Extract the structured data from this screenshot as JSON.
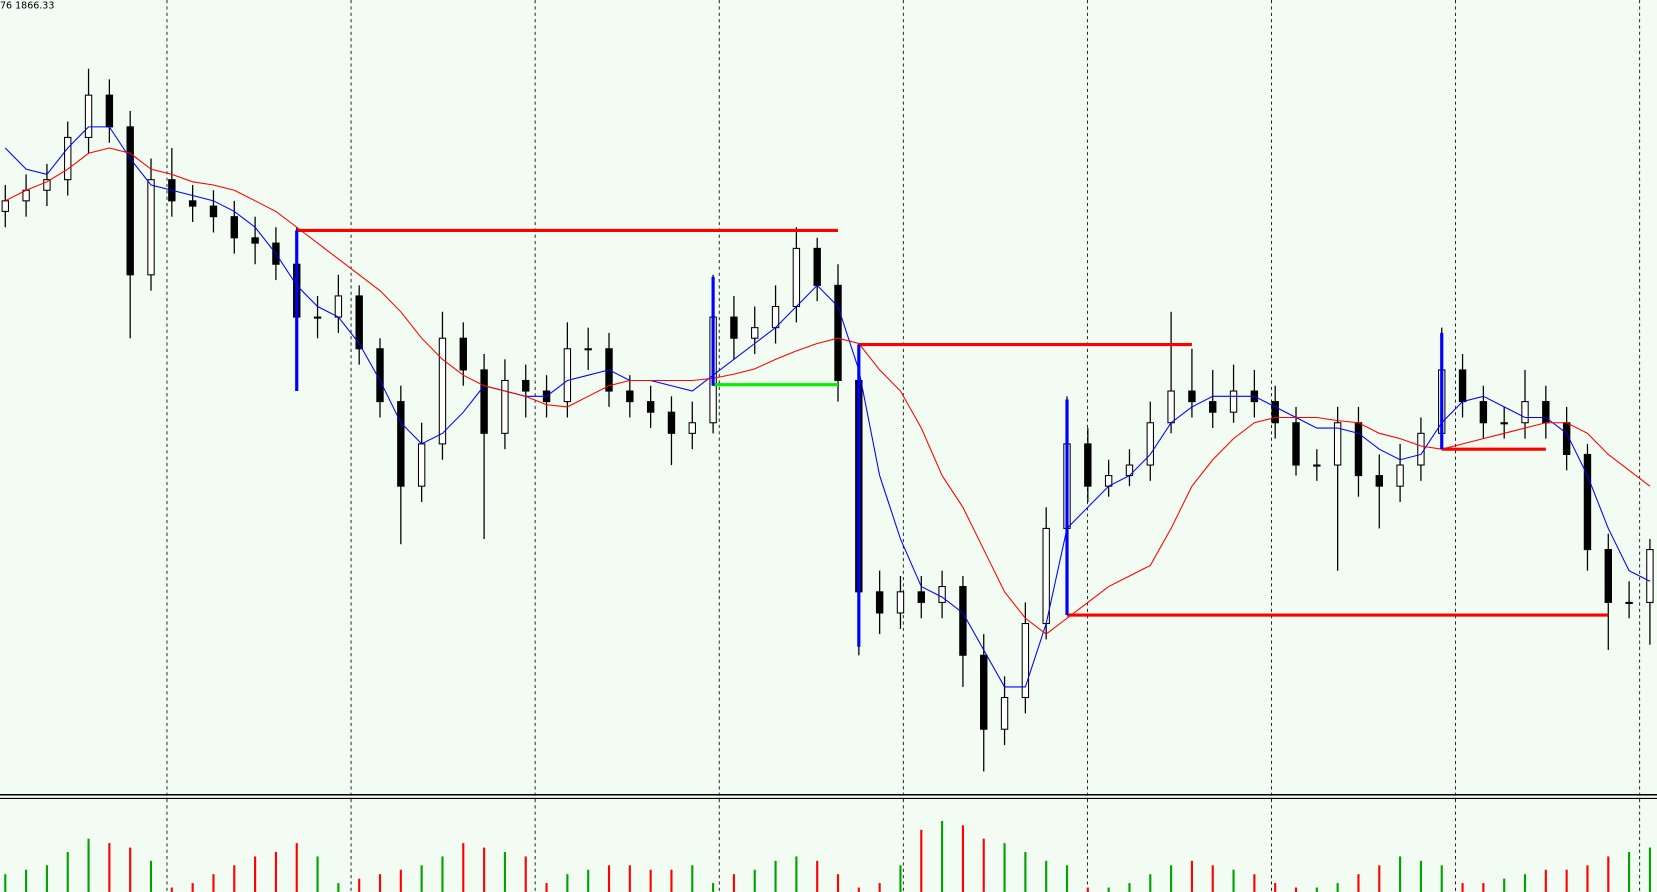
{
  "chart_data": {
    "type": "candlestick",
    "title": "76 1866.33",
    "ylim": [
      0,
      750
    ],
    "open": [
      550,
      560,
      570,
      580,
      620,
      660,
      630,
      490,
      580,
      560,
      555,
      545,
      525,
      520,
      500,
      450,
      450,
      470,
      420,
      370,
      290,
      330,
      430,
      400,
      340,
      390,
      380,
      370,
      420,
      420,
      380,
      370,
      360,
      340,
      350,
      450,
      430,
      440,
      460,
      515,
      480,
      390,
      190,
      170,
      190,
      180,
      195,
      130,
      60,
      90,
      160,
      250,
      330,
      290,
      300,
      310,
      350,
      380,
      370,
      360,
      380,
      370,
      350,
      310,
      310,
      350,
      300,
      290,
      310,
      340,
      400,
      370,
      350,
      350,
      370,
      350,
      320,
      230,
      180,
      180
    ],
    "high": [
      575,
      585,
      595,
      635,
      685,
      675,
      645,
      600,
      610,
      575,
      570,
      560,
      545,
      535,
      535,
      470,
      490,
      480,
      430,
      385,
      350,
      455,
      445,
      415,
      410,
      405,
      395,
      445,
      440,
      435,
      395,
      385,
      375,
      370,
      490,
      470,
      460,
      480,
      535,
      525,
      500,
      425,
      210,
      205,
      205,
      210,
      205,
      150,
      110,
      180,
      270,
      375,
      345,
      315,
      325,
      370,
      455,
      420,
      400,
      405,
      400,
      385,
      365,
      325,
      365,
      365,
      320,
      330,
      355,
      440,
      415,
      385,
      365,
      400,
      385,
      365,
      330,
      245,
      200,
      240
    ],
    "low": [
      535,
      545,
      555,
      565,
      605,
      615,
      430,
      475,
      545,
      540,
      530,
      510,
      500,
      485,
      380,
      430,
      435,
      405,
      355,
      235,
      275,
      315,
      385,
      240,
      325,
      355,
      355,
      355,
      400,
      365,
      355,
      345,
      310,
      325,
      340,
      410,
      415,
      425,
      445,
      465,
      370,
      130,
      150,
      155,
      165,
      165,
      100,
      20,
      45,
      75,
      145,
      235,
      275,
      280,
      290,
      295,
      340,
      355,
      345,
      350,
      355,
      335,
      300,
      295,
      210,
      280,
      250,
      275,
      295,
      330,
      355,
      335,
      335,
      335,
      335,
      305,
      210,
      135,
      165,
      140
    ],
    "close": [
      560,
      570,
      580,
      620,
      660,
      630,
      490,
      580,
      560,
      555,
      545,
      525,
      520,
      500,
      450,
      450,
      470,
      420,
      370,
      290,
      330,
      430,
      400,
      340,
      390,
      380,
      370,
      420,
      420,
      380,
      370,
      360,
      340,
      350,
      450,
      430,
      440,
      460,
      515,
      480,
      390,
      190,
      170,
      190,
      180,
      195,
      130,
      60,
      90,
      160,
      250,
      330,
      290,
      300,
      310,
      350,
      380,
      370,
      360,
      380,
      370,
      350,
      310,
      310,
      350,
      300,
      290,
      310,
      340,
      400,
      370,
      350,
      350,
      370,
      350,
      320,
      230,
      180,
      180,
      230
    ],
    "series": [
      {
        "color": "#0000ff",
        "values": [
          610,
          590,
          585,
          610,
          630,
          630,
          600,
          575,
          570,
          565,
          560,
          550,
          535,
          510,
          480,
          460,
          450,
          425,
          390,
          350,
          330,
          340,
          360,
          385,
          380,
          375,
          375,
          390,
          395,
          400,
          390,
          390,
          385,
          380,
          395,
          410,
          425,
          440,
          460,
          480,
          460,
          400,
          300,
          240,
          195,
          185,
          170,
          135,
          100,
          100,
          160,
          250,
          270,
          290,
          300,
          320,
          350,
          365,
          375,
          375,
          375,
          365,
          355,
          345,
          345,
          340,
          325,
          315,
          320,
          350,
          370,
          375,
          365,
          355,
          355,
          340,
          300,
          250,
          210,
          200
        ]
      },
      {
        "color": "#ff0000",
        "values": [
          560,
          570,
          578,
          590,
          605,
          610,
          605,
          590,
          585,
          578,
          575,
          570,
          560,
          550,
          535,
          520,
          505,
          490,
          475,
          455,
          430,
          410,
          395,
          385,
          380,
          375,
          367,
          365,
          375,
          385,
          390,
          390,
          390,
          390,
          392,
          396,
          401,
          410,
          418,
          425,
          430,
          425,
          400,
          380,
          345,
          300,
          270,
          230,
          190,
          165,
          150,
          165,
          180,
          195,
          205,
          215,
          250,
          290,
          315,
          335,
          350,
          355,
          355,
          355,
          352,
          350,
          340,
          335,
          328,
          325,
          330,
          335,
          340,
          345,
          350,
          350,
          340,
          320,
          305,
          290
        ]
      }
    ],
    "levels": [
      {
        "start": 14,
        "end": 40,
        "value": 532,
        "color": "#ff0000"
      },
      {
        "start": 41,
        "end": 57,
        "value": 424,
        "color": "#ff0000"
      },
      {
        "start": 34,
        "end": 40,
        "value": 386,
        "color": "#00ee00"
      },
      {
        "start": 69,
        "end": 74,
        "value": 325,
        "color": "#ff0000"
      },
      {
        "start": 51,
        "end": 77,
        "value": 168,
        "color": "#ff0000"
      }
    ],
    "markers": [
      {
        "index": 14,
        "from": 532,
        "to": 380,
        "color": "#0000ff"
      },
      {
        "index": 34,
        "from": 488,
        "to": 385,
        "color": "#0000ff"
      },
      {
        "index": 41,
        "from": 424,
        "to": 138,
        "color": "#0000ff"
      },
      {
        "index": 51,
        "from": 372,
        "to": 168,
        "color": "#0000ff"
      },
      {
        "index": 69,
        "from": 435,
        "to": 325,
        "color": "#0000ff"
      }
    ],
    "volume": {
      "ylim": [
        0,
        100
      ],
      "up_color": "#00a000",
      "down_color": "#ff0000",
      "values": [
        20,
        25,
        30,
        45,
        60,
        55,
        50,
        35,
        5,
        10,
        20,
        30,
        40,
        45,
        55,
        40,
        10,
        15,
        20,
        25,
        30,
        40,
        55,
        50,
        45,
        40,
        10,
        20,
        25,
        30,
        30,
        25,
        25,
        30,
        10,
        20,
        25,
        35,
        40,
        35,
        20,
        5,
        10,
        30,
        70,
        80,
        75,
        60,
        55,
        45,
        35,
        30,
        5,
        5,
        10,
        20,
        30,
        35,
        30,
        25,
        20,
        10,
        5,
        5,
        10,
        20,
        30,
        40,
        35,
        30,
        10,
        10,
        15,
        20,
        25,
        25,
        30,
        40,
        45,
        50
      ]
    }
  }
}
